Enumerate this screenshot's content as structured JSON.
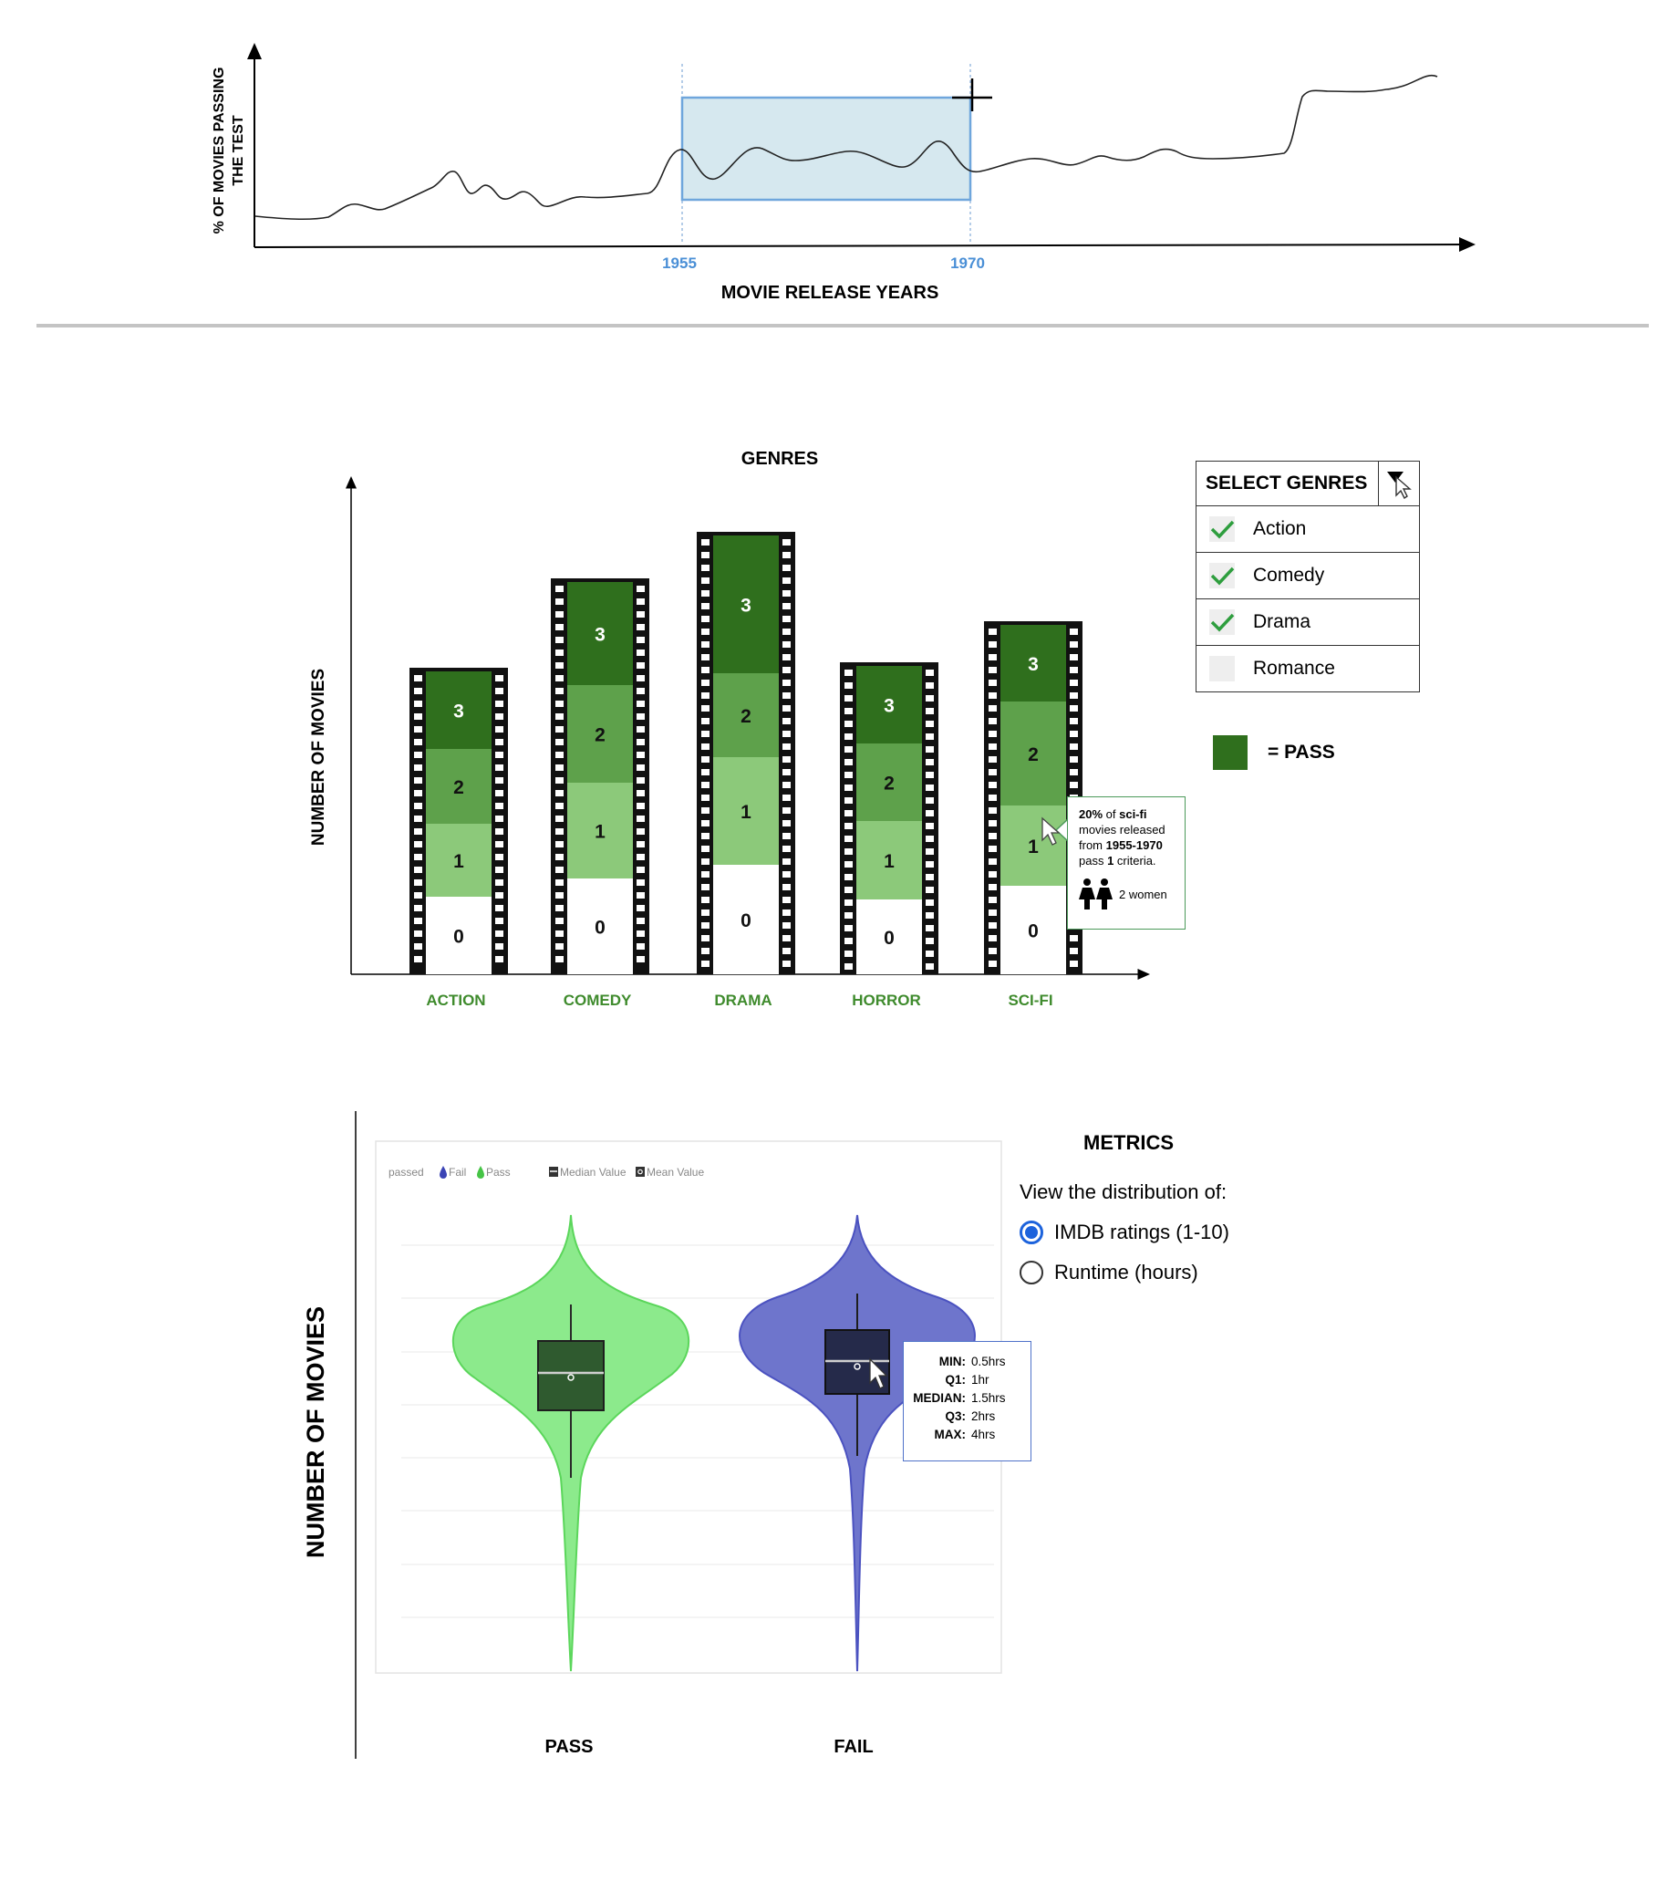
{
  "timeline": {
    "ylabel_line1": "% OF MOVIES PASSING",
    "ylabel_line2": "THE TEST",
    "xlabel": "MOVIE RELEASE YEARS",
    "range_start": "1955",
    "range_end": "1970"
  },
  "genres_chart": {
    "title": "GENRES",
    "ylabel": "NUMBER OF MOVIES",
    "tooltip": {
      "pct": "20%",
      "of": " of ",
      "genre": "sci-fi",
      "line2": "movies released",
      "from": "from ",
      "years": "1955-1970",
      "pass": "pass ",
      "count": "1",
      "criteria": " criteria.",
      "women": "2 women"
    }
  },
  "genre_selector": {
    "title": "SELECT GENRES",
    "options": [
      {
        "label": "Action",
        "checked": true
      },
      {
        "label": "Comedy",
        "checked": true
      },
      {
        "label": "Drama",
        "checked": true
      },
      {
        "label": "Romance",
        "checked": false
      }
    ]
  },
  "legend": {
    "pass_label": "= PASS",
    "pass_color": "#2f6f1d"
  },
  "violin": {
    "ylabel": "NUMBER OF MOVIES",
    "legend_passed": "passed",
    "legend_fail": "Fail",
    "legend_pass": "Pass",
    "legend_median": "Median Value",
    "legend_mean": "Mean Value",
    "pass_label": "PASS",
    "fail_label": "FAIL",
    "pass_color": "#7ee77e",
    "fail_color": "#5b63c4",
    "tooltip": {
      "min_k": "MIN:",
      "min_v": "0.5hrs",
      "q1_k": "Q1:",
      "q1_v": "1hr",
      "median_k": "MEDIAN:",
      "median_v": "1.5hrs",
      "q3_k": "Q3:",
      "q3_v": "2hrs",
      "max_k": "MAX:",
      "max_v": "4hrs"
    }
  },
  "metrics": {
    "title": "METRICS",
    "subtitle": "View the distribution of:",
    "options": [
      {
        "label": "IMDB ratings (1-10)",
        "selected": true
      },
      {
        "label": "Runtime (hours)",
        "selected": false
      }
    ]
  },
  "chart_data": [
    {
      "type": "line",
      "xlabel": "MOVIE RELEASE YEARS",
      "ylabel": "% OF MOVIES PASSING THE TEST",
      "brush_selection": [
        "1955",
        "1970"
      ]
    },
    {
      "type": "bar",
      "title": "GENRES",
      "ylabel": "NUMBER OF MOVIES",
      "categories": [
        "ACTION",
        "COMEDY",
        "DRAMA",
        "HORROR",
        "SCI-FI"
      ],
      "stack_levels": [
        "0",
        "1",
        "2",
        "3"
      ],
      "stack_colors": [
        "#ffffff",
        "#8cc97a",
        "#5ea14b",
        "#2f6f1d"
      ],
      "series": [
        {
          "values": [
            85,
            105,
            120,
            82,
            97
          ]
        },
        {
          "values": [
            80,
            105,
            118,
            86,
            88
          ]
        },
        {
          "values": [
            82,
            107,
            92,
            85,
            114
          ]
        },
        {
          "values": [
            85,
            113,
            151,
            85,
            84
          ]
        }
      ]
    },
    {
      "type": "violin",
      "ylabel": "NUMBER OF MOVIES",
      "categories": [
        "PASS",
        "FAIL"
      ],
      "fail_summary": {
        "min": 0.5,
        "q1": 1,
        "median": 1.5,
        "q3": 2,
        "max": 4
      }
    }
  ]
}
